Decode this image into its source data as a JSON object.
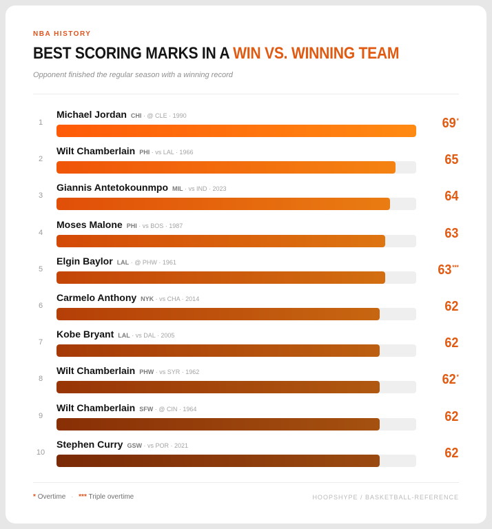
{
  "header": {
    "kicker": "NBA HISTORY",
    "title_main": "BEST SCORING MARKS IN A ",
    "title_accent": "WIN VS. WINNING TEAM",
    "subtitle": "Opponent finished the regular season with a winning record"
  },
  "chart_data": {
    "type": "bar",
    "orientation": "horizontal",
    "xlim": [
      0,
      69
    ],
    "grid": false,
    "rows": [
      {
        "rank": "1",
        "player": "Michael Jordan",
        "team": "CHI",
        "details": "@ CLE · 1990",
        "points": 69,
        "value_label": "69",
        "marker": "*"
      },
      {
        "rank": "2",
        "player": "Wilt Chamberlain",
        "team": "PHI",
        "details": "vs LAL · 1966",
        "points": 65,
        "value_label": "65",
        "marker": ""
      },
      {
        "rank": "3",
        "player": "Giannis Antetokounmpo",
        "team": "MIL",
        "details": "vs IND · 2023",
        "points": 64,
        "value_label": "64",
        "marker": ""
      },
      {
        "rank": "4",
        "player": "Moses Malone",
        "team": "PHI",
        "details": "vs BOS · 1987",
        "points": 63,
        "value_label": "63",
        "marker": ""
      },
      {
        "rank": "5",
        "player": "Elgin Baylor",
        "team": "LAL",
        "details": "@ PHW · 1961",
        "points": 63,
        "value_label": "63",
        "marker": "***"
      },
      {
        "rank": "6",
        "player": "Carmelo Anthony",
        "team": "NYK",
        "details": "vs CHA · 2014",
        "points": 62,
        "value_label": "62",
        "marker": ""
      },
      {
        "rank": "7",
        "player": "Kobe Bryant",
        "team": "LAL",
        "details": "vs DAL · 2005",
        "points": 62,
        "value_label": "62",
        "marker": ""
      },
      {
        "rank": "8",
        "player": "Wilt Chamberlain",
        "team": "PHW",
        "details": "vs SYR · 1962",
        "points": 62,
        "value_label": "62",
        "marker": "*"
      },
      {
        "rank": "9",
        "player": "Wilt Chamberlain",
        "team": "SFW",
        "details": "@ CIN · 1964",
        "points": 62,
        "value_label": "62",
        "marker": ""
      },
      {
        "rank": "10",
        "player": "Stephen Curry",
        "team": "GSW",
        "details": "vs POR · 2021",
        "points": 62,
        "value_label": "62",
        "marker": ""
      }
    ],
    "bar_colors": {
      "top_start": "#ff5a08",
      "top_end": "#ff8a12",
      "bottom_start": "#7a2a06",
      "bottom_end": "#9a4a10"
    },
    "value_color": "#e05a12",
    "track_color": "#efefef"
  },
  "legend": {
    "ot_marker": "*",
    "ot_label": "Overtime",
    "separator": "·",
    "tot_marker": "***",
    "tot_label": "Triple overtime"
  },
  "source": "HOOPSHYPE / BASKETBALL-REFERENCE"
}
